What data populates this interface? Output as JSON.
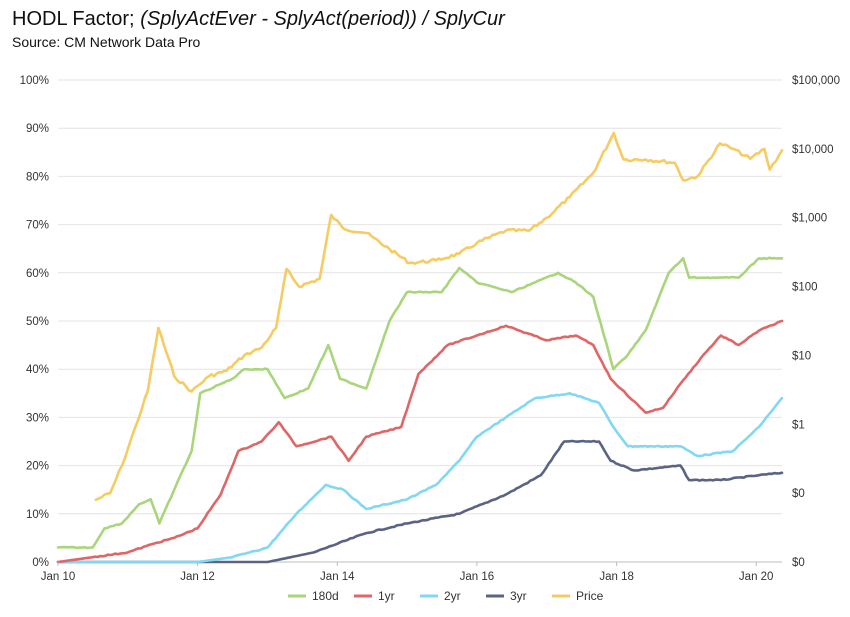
{
  "title_main": "HODL Factor;",
  "title_formula": "(SplyActEver - SplyAct(period)) / SplyCur",
  "subtitle": "Source: CM Network Data Pro",
  "chart_data": {
    "type": "line",
    "x_ticks": [
      "Jan 10",
      "Jan 12",
      "Jan 14",
      "Jan 16",
      "Jan 18",
      "Jan 20"
    ],
    "y_left_ticks": [
      "0%",
      "10%",
      "20%",
      "30%",
      "40%",
      "50%",
      "60%",
      "70%",
      "80%",
      "90%",
      "100%"
    ],
    "y_right_ticks": [
      "$0",
      "$0",
      "$1",
      "$10",
      "$100",
      "$1,000",
      "$10,000",
      "$100,000"
    ],
    "ylim_left": [
      0,
      100
    ],
    "ylim_right_log10": [
      -2,
      5
    ],
    "xlim": [
      "2010-01-01",
      "2020-05-15"
    ],
    "grid": true,
    "legend_position": "bottom",
    "series": [
      {
        "name": "180d",
        "color": "#a9d57b",
        "axis": "left",
        "points": [
          [
            "2010-01-01",
            3
          ],
          [
            "2010-07-01",
            3
          ],
          [
            "2010-09-01",
            7
          ],
          [
            "2010-12-01",
            8
          ],
          [
            "2011-03-01",
            12
          ],
          [
            "2011-05-01",
            13
          ],
          [
            "2011-06-15",
            8
          ],
          [
            "2011-09-01",
            15
          ],
          [
            "2011-12-01",
            23
          ],
          [
            "2012-01-15",
            35
          ],
          [
            "2012-07-01",
            38
          ],
          [
            "2012-09-01",
            40
          ],
          [
            "2013-01-01",
            40
          ],
          [
            "2013-04-01",
            34
          ],
          [
            "2013-08-01",
            36
          ],
          [
            "2013-11-15",
            45
          ],
          [
            "2014-01-15",
            38
          ],
          [
            "2014-06-01",
            36
          ],
          [
            "2014-10-01",
            50
          ],
          [
            "2015-01-01",
            56
          ],
          [
            "2015-07-01",
            56
          ],
          [
            "2015-10-01",
            61
          ],
          [
            "2016-01-01",
            58
          ],
          [
            "2016-07-01",
            56
          ],
          [
            "2016-11-01",
            58
          ],
          [
            "2017-03-01",
            60
          ],
          [
            "2017-06-01",
            58
          ],
          [
            "2017-09-01",
            55
          ],
          [
            "2017-12-15",
            40
          ],
          [
            "2018-03-01",
            43
          ],
          [
            "2018-06-01",
            48
          ],
          [
            "2018-10-01",
            60
          ],
          [
            "2018-12-15",
            63
          ],
          [
            "2019-01-15",
            59
          ],
          [
            "2019-07-01",
            59
          ],
          [
            "2019-10-01",
            59
          ],
          [
            "2020-01-15",
            63
          ],
          [
            "2020-05-15",
            63
          ]
        ]
      },
      {
        "name": "1yr",
        "color": "#e06666",
        "axis": "left",
        "points": [
          [
            "2010-01-01",
            0
          ],
          [
            "2010-07-01",
            1
          ],
          [
            "2011-01-01",
            2
          ],
          [
            "2011-06-01",
            4
          ],
          [
            "2011-09-01",
            5
          ],
          [
            "2012-01-01",
            7
          ],
          [
            "2012-05-01",
            14
          ],
          [
            "2012-08-01",
            23
          ],
          [
            "2012-12-01",
            25
          ],
          [
            "2013-03-01",
            29
          ],
          [
            "2013-06-01",
            24
          ],
          [
            "2013-12-01",
            26
          ],
          [
            "2014-03-01",
            21
          ],
          [
            "2014-06-01",
            26
          ],
          [
            "2014-12-01",
            28
          ],
          [
            "2015-03-01",
            39
          ],
          [
            "2015-08-01",
            45
          ],
          [
            "2016-01-01",
            47
          ],
          [
            "2016-06-01",
            49
          ],
          [
            "2017-01-01",
            46
          ],
          [
            "2017-06-01",
            47
          ],
          [
            "2017-09-01",
            45
          ],
          [
            "2017-12-01",
            38
          ],
          [
            "2018-06-01",
            31
          ],
          [
            "2018-09-01",
            32
          ],
          [
            "2018-12-01",
            37
          ],
          [
            "2019-04-01",
            43
          ],
          [
            "2019-07-01",
            47
          ],
          [
            "2019-10-01",
            45
          ],
          [
            "2020-01-15",
            48
          ],
          [
            "2020-05-15",
            50
          ]
        ]
      },
      {
        "name": "2yr",
        "color": "#80d8f3",
        "axis": "left",
        "points": [
          [
            "2010-01-01",
            0
          ],
          [
            "2011-01-01",
            0
          ],
          [
            "2012-01-01",
            0
          ],
          [
            "2012-07-01",
            1
          ],
          [
            "2013-01-01",
            3
          ],
          [
            "2013-06-01",
            10
          ],
          [
            "2013-11-01",
            16
          ],
          [
            "2014-02-01",
            15
          ],
          [
            "2014-06-01",
            11
          ],
          [
            "2015-01-01",
            13
          ],
          [
            "2015-06-01",
            16
          ],
          [
            "2015-10-01",
            21
          ],
          [
            "2016-01-01",
            26
          ],
          [
            "2016-06-01",
            30
          ],
          [
            "2016-11-01",
            34
          ],
          [
            "2017-05-01",
            35
          ],
          [
            "2017-10-01",
            33
          ],
          [
            "2017-12-15",
            28
          ],
          [
            "2018-03-01",
            24
          ],
          [
            "2018-12-01",
            24
          ],
          [
            "2019-03-01",
            22
          ],
          [
            "2019-09-01",
            23
          ],
          [
            "2020-01-15",
            28
          ],
          [
            "2020-05-15",
            34
          ]
        ]
      },
      {
        "name": "3yr",
        "color": "#5b6385",
        "axis": "left",
        "points": [
          [
            "2010-01-01",
            0
          ],
          [
            "2013-01-01",
            0
          ],
          [
            "2013-09-01",
            2
          ],
          [
            "2014-06-01",
            6
          ],
          [
            "2015-01-01",
            8
          ],
          [
            "2015-10-01",
            10
          ],
          [
            "2016-06-01",
            14
          ],
          [
            "2016-12-01",
            18
          ],
          [
            "2017-04-01",
            25
          ],
          [
            "2017-10-01",
            25
          ],
          [
            "2017-12-01",
            21
          ],
          [
            "2018-04-01",
            19
          ],
          [
            "2018-12-01",
            20
          ],
          [
            "2019-01-15",
            17
          ],
          [
            "2019-07-01",
            17
          ],
          [
            "2020-01-15",
            18
          ],
          [
            "2020-05-15",
            18.5
          ]
        ]
      },
      {
        "name": "Price",
        "color": "#f6cc62",
        "axis": "right",
        "points": [
          [
            "2010-07-18",
            0.08
          ],
          [
            "2010-10-01",
            0.1
          ],
          [
            "2010-12-01",
            0.25
          ],
          [
            "2011-02-15",
            1.0
          ],
          [
            "2011-04-15",
            3
          ],
          [
            "2011-06-10",
            25
          ],
          [
            "2011-09-01",
            5
          ],
          [
            "2011-12-01",
            3
          ],
          [
            "2012-03-01",
            5
          ],
          [
            "2012-06-01",
            6
          ],
          [
            "2012-09-01",
            10
          ],
          [
            "2012-12-01",
            13
          ],
          [
            "2013-02-15",
            25
          ],
          [
            "2013-04-10",
            180
          ],
          [
            "2013-06-15",
            100
          ],
          [
            "2013-10-01",
            130
          ],
          [
            "2013-11-30",
            1100
          ],
          [
            "2014-02-01",
            700
          ],
          [
            "2014-06-01",
            600
          ],
          [
            "2014-10-01",
            350
          ],
          [
            "2015-01-15",
            220
          ],
          [
            "2015-06-01",
            240
          ],
          [
            "2015-10-01",
            300
          ],
          [
            "2016-01-01",
            430
          ],
          [
            "2016-06-01",
            650
          ],
          [
            "2016-10-01",
            650
          ],
          [
            "2017-01-01",
            1000
          ],
          [
            "2017-05-01",
            2000
          ],
          [
            "2017-09-01",
            4500
          ],
          [
            "2017-12-17",
            17000
          ],
          [
            "2018-02-06",
            7000
          ],
          [
            "2018-06-01",
            7000
          ],
          [
            "2018-11-01",
            6300
          ],
          [
            "2018-12-15",
            3500
          ],
          [
            "2019-03-01",
            4000
          ],
          [
            "2019-06-26",
            12000
          ],
          [
            "2019-09-01",
            10000
          ],
          [
            "2019-12-01",
            7200
          ],
          [
            "2020-02-13",
            10000
          ],
          [
            "2020-03-12",
            5000
          ],
          [
            "2020-05-15",
            9500
          ]
        ]
      }
    ]
  }
}
